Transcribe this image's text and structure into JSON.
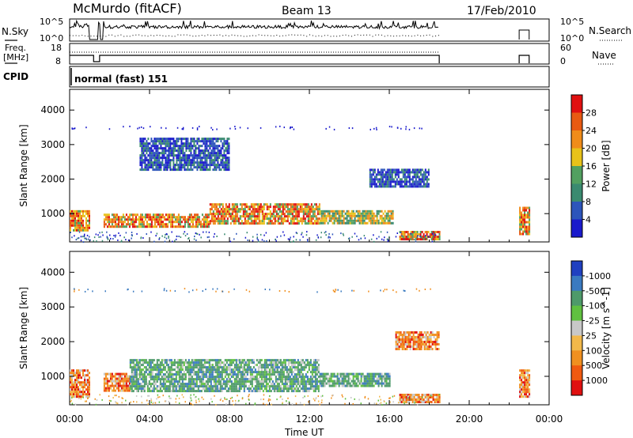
{
  "header": {
    "station": "McMurdo (fitACF)",
    "beam": "Beam 13",
    "date": "17/Feb/2010"
  },
  "left_labels": {
    "nsky": "N.Sky",
    "freq_line1": "Freq.",
    "freq_line2": "[MHz]",
    "cpid": "CPID"
  },
  "right_labels": {
    "nsearch": "N.Search",
    "nave": "Nave"
  },
  "strip_ticks": {
    "nsky_top": "10^5",
    "nsky_bottom": "10^0",
    "nsearch_top": "10^5",
    "nsearch_bottom": "10^0",
    "freq_top": "18",
    "freq_bottom": "8",
    "nave_top": "60",
    "nave_bottom": "0"
  },
  "cpid_text": "normal (fast) 151",
  "colors": {
    "power_scale": [
      "#1a1acc",
      "#2d55bb",
      "#3a8a70",
      "#52a060",
      "#e8c21a",
      "#f08c1a",
      "#e85a12",
      "#e01010"
    ],
    "velocity_scale": [
      "#e01010",
      "#f05a10",
      "#f09020",
      "#f2b84a",
      "#c8c8c8",
      "#60c040",
      "#4e9a6a",
      "#3a7ac0",
      "#2040c0"
    ]
  },
  "chart_data": [
    {
      "type": "heatmap",
      "title": "Power",
      "ylabel": "Slant Range [km]",
      "xlabel": "Time UT",
      "x_ticks": [
        "00:00",
        "04:00",
        "08:00",
        "12:00",
        "16:00",
        "20:00",
        "00:00"
      ],
      "y_ticks": [
        1000,
        2000,
        3000,
        4000
      ],
      "ylim": [
        180,
        4600
      ],
      "xlim_hours": [
        0,
        24
      ],
      "colorbar": {
        "label": "Power [dB]",
        "ticks": [
          4,
          8,
          12,
          16,
          20,
          24,
          28
        ],
        "range": [
          0,
          32
        ]
      },
      "regions": [
        {
          "t0": 0.0,
          "t1": 1.0,
          "r0": 500,
          "r1": 1100,
          "level": "high"
        },
        {
          "t0": 1.7,
          "t1": 7.0,
          "r0": 600,
          "r1": 1000,
          "level": "high"
        },
        {
          "t0": 7.0,
          "t1": 12.5,
          "r0": 700,
          "r1": 1300,
          "level": "high"
        },
        {
          "t0": 12.5,
          "t1": 16.2,
          "r0": 700,
          "r1": 1100,
          "level": "medium"
        },
        {
          "t0": 16.5,
          "t1": 18.5,
          "r0": 250,
          "r1": 500,
          "level": "high"
        },
        {
          "t0": 15.0,
          "t1": 18.0,
          "r0": 1800,
          "r1": 2300,
          "level": "low"
        },
        {
          "t0": 3.5,
          "t1": 8.0,
          "r0": 2300,
          "r1": 3200,
          "level": "low"
        },
        {
          "t0": 22.5,
          "t1": 23.0,
          "r0": 400,
          "r1": 1200,
          "level": "high"
        }
      ]
    },
    {
      "type": "heatmap",
      "title": "Velocity",
      "ylabel": "Slant Range [km]",
      "xlabel": "Time UT",
      "x_ticks": [
        "00:00",
        "04:00",
        "08:00",
        "12:00",
        "16:00",
        "20:00",
        "00:00"
      ],
      "y_ticks": [
        1000,
        2000,
        3000,
        4000
      ],
      "ylim": [
        180,
        4600
      ],
      "xlim_hours": [
        0,
        24
      ],
      "colorbar": {
        "label": "Velocity [m s^-1]",
        "ticks": [
          1000,
          500,
          100,
          25,
          -25,
          -100,
          -500,
          -1000
        ]
      },
      "regions": [
        {
          "t0": 0.0,
          "t1": 1.0,
          "r0": 400,
          "r1": 1200,
          "level": "negative"
        },
        {
          "t0": 1.7,
          "t1": 3.0,
          "r0": 600,
          "r1": 1100,
          "level": "negative"
        },
        {
          "t0": 3.0,
          "t1": 12.5,
          "r0": 600,
          "r1": 1500,
          "level": "positive"
        },
        {
          "t0": 12.5,
          "t1": 16.0,
          "r0": 700,
          "r1": 1100,
          "level": "positive"
        },
        {
          "t0": 16.3,
          "t1": 18.5,
          "r0": 1800,
          "r1": 2300,
          "level": "negative"
        },
        {
          "t0": 16.5,
          "t1": 18.5,
          "r0": 250,
          "r1": 500,
          "level": "negative"
        },
        {
          "t0": 22.5,
          "t1": 23.0,
          "r0": 400,
          "r1": 1200,
          "level": "negative"
        }
      ]
    }
  ]
}
